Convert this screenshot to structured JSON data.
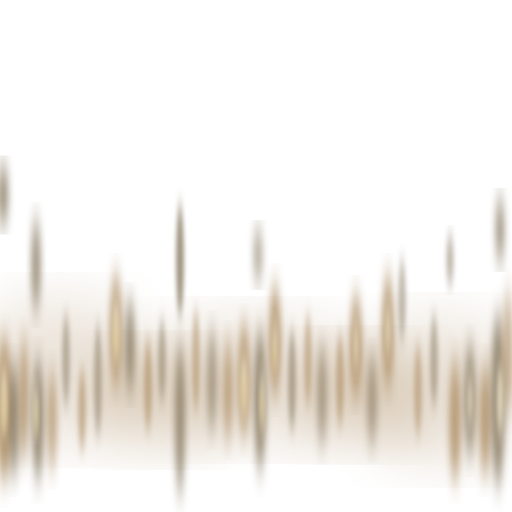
{
  "image": {
    "subject": "blurred-vertical-streaks",
    "colors": {
      "background": "#ffffff",
      "streak_dark": "#7a6a4f",
      "streak_mid": "#a8865a",
      "streak_light": "#d9c08a",
      "highlight": "#f3ead0",
      "shadow": "#3f3a34"
    }
  }
}
